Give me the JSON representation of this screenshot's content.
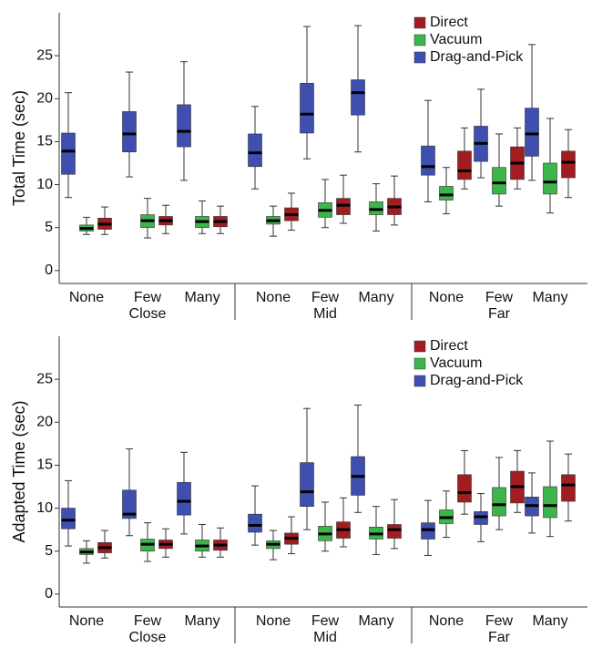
{
  "chart_data": [
    {
      "type": "box",
      "ylabel": "Total Time (sec)",
      "categories": [
        "None",
        "Few",
        "Many",
        "None",
        "Few",
        "Many",
        "None",
        "Few",
        "Many"
      ],
      "groups": [
        "Close",
        "Mid",
        "Far"
      ],
      "ylim": [
        -1.5,
        30
      ],
      "yticks": [
        0,
        5,
        10,
        15,
        20,
        25
      ],
      "legend": "upper right",
      "series": [
        {
          "name": "Direct",
          "color": "#a11d21",
          "values": [
            [
              4.2,
              4.8,
              5.4,
              6.1,
              7.4
            ],
            [
              4.3,
              5.3,
              5.8,
              6.3,
              7.6
            ],
            [
              4.3,
              5.1,
              5.7,
              6.3,
              7.5
            ],
            [
              4.7,
              5.8,
              6.5,
              7.3,
              9.0
            ],
            [
              5.5,
              6.5,
              7.6,
              8.4,
              11.1
            ],
            [
              5.3,
              6.5,
              7.4,
              8.4,
              11.0
            ],
            [
              9.5,
              10.6,
              11.6,
              13.9,
              16.6
            ],
            [
              9.5,
              10.6,
              12.5,
              14.4,
              16.6
            ],
            [
              8.5,
              10.8,
              12.6,
              13.9,
              16.4
            ]
          ]
        },
        {
          "name": "Vacuum",
          "color": "#3cb54a",
          "values": [
            [
              4.2,
              4.6,
              4.9,
              5.3,
              6.2
            ],
            [
              3.8,
              5.0,
              5.8,
              6.5,
              8.4
            ],
            [
              4.3,
              5.0,
              5.7,
              6.3,
              8.1
            ],
            [
              4.0,
              5.4,
              5.8,
              6.3,
              7.5
            ],
            [
              5.0,
              6.2,
              7.0,
              7.9,
              10.6
            ],
            [
              4.6,
              6.5,
              7.1,
              8.0,
              10.1
            ],
            [
              6.6,
              8.2,
              8.8,
              9.8,
              12.0
            ],
            [
              7.5,
              8.9,
              10.2,
              12.0,
              15.9
            ],
            [
              6.7,
              8.9,
              10.3,
              12.5,
              17.7
            ]
          ]
        },
        {
          "name": "Drag-and-Pick",
          "color": "#3e4fb0",
          "values": [
            [
              8.5,
              11.2,
              13.9,
              16.0,
              20.7
            ],
            [
              10.9,
              13.8,
              15.9,
              18.5,
              23.1
            ],
            [
              10.5,
              14.4,
              16.2,
              19.3,
              24.3
            ],
            [
              9.5,
              12.1,
              13.7,
              15.9,
              19.1
            ],
            [
              13.0,
              16.0,
              18.2,
              21.8,
              28.4
            ],
            [
              13.8,
              18.1,
              20.7,
              22.2,
              28.5
            ],
            [
              8.0,
              11.1,
              12.1,
              14.5,
              19.8
            ],
            [
              10.8,
              12.7,
              14.8,
              16.8,
              21.1
            ],
            [
              10.5,
              13.3,
              15.9,
              18.9,
              26.3
            ]
          ]
        }
      ]
    },
    {
      "type": "box",
      "ylabel": "Adapted Time (sec)",
      "categories": [
        "None",
        "Few",
        "Many",
        "None",
        "Few",
        "Many",
        "None",
        "Few",
        "Many"
      ],
      "groups": [
        "Close",
        "Mid",
        "Far"
      ],
      "ylim": [
        -1.5,
        30
      ],
      "yticks": [
        0,
        5,
        10,
        15,
        20,
        25
      ],
      "legend": "upper right",
      "series": [
        {
          "name": "Direct",
          "color": "#a11d21",
          "values": [
            [
              4.2,
              4.8,
              5.4,
              6.0,
              7.4
            ],
            [
              4.3,
              5.3,
              5.8,
              6.3,
              7.6
            ],
            [
              4.3,
              5.1,
              5.7,
              6.3,
              7.7
            ],
            [
              4.7,
              5.8,
              6.5,
              7.1,
              9.0
            ],
            [
              5.5,
              6.5,
              7.5,
              8.4,
              11.2
            ],
            [
              5.3,
              6.5,
              7.5,
              8.1,
              11.0
            ],
            [
              9.3,
              10.7,
              11.8,
              13.9,
              16.7
            ],
            [
              9.5,
              10.6,
              12.5,
              14.3,
              16.7
            ],
            [
              8.5,
              10.8,
              12.7,
              13.9,
              16.3
            ]
          ]
        },
        {
          "name": "Vacuum",
          "color": "#3cb54a",
          "values": [
            [
              3.6,
              4.6,
              4.9,
              5.3,
              6.2
            ],
            [
              3.8,
              5.0,
              5.8,
              6.4,
              8.3
            ],
            [
              4.3,
              5.0,
              5.6,
              6.3,
              8.1
            ],
            [
              4.0,
              5.3,
              5.8,
              6.2,
              7.4
            ],
            [
              5.0,
              6.2,
              7.0,
              7.9,
              10.7
            ],
            [
              4.6,
              6.4,
              7.0,
              7.8,
              10.2
            ],
            [
              6.6,
              8.2,
              8.9,
              9.8,
              12.0
            ],
            [
              7.5,
              9.1,
              10.4,
              12.4,
              15.9
            ],
            [
              6.7,
              8.9,
              10.3,
              12.5,
              17.8
            ]
          ]
        },
        {
          "name": "Drag-and-Pick",
          "color": "#3e4fb0",
          "values": [
            [
              5.6,
              7.6,
              8.6,
              10.0,
              13.2
            ],
            [
              6.8,
              8.8,
              9.3,
              12.1,
              16.9
            ],
            [
              7.0,
              9.2,
              10.8,
              13.0,
              16.5
            ],
            [
              5.7,
              7.2,
              8.0,
              9.3,
              12.6
            ],
            [
              7.5,
              10.2,
              11.9,
              15.3,
              21.6
            ],
            [
              9.5,
              11.5,
              13.7,
              16.0,
              22.0
            ],
            [
              4.5,
              6.4,
              7.5,
              8.3,
              10.9
            ],
            [
              6.1,
              8.1,
              9.0,
              9.6,
              11.7
            ],
            [
              7.1,
              9.1,
              10.3,
              11.3,
              14.1
            ]
          ]
        }
      ]
    }
  ]
}
